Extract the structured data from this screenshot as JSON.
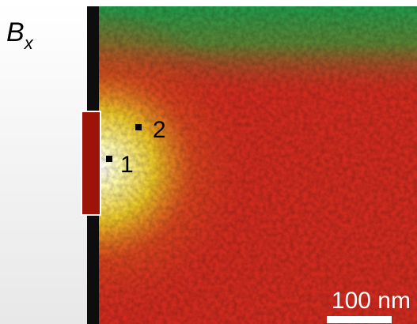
{
  "label": {
    "base": "B",
    "subscript": "x"
  },
  "markers": [
    {
      "label": "1"
    },
    {
      "label": "2"
    }
  ],
  "scale_bar": {
    "label": "100 nm"
  }
}
